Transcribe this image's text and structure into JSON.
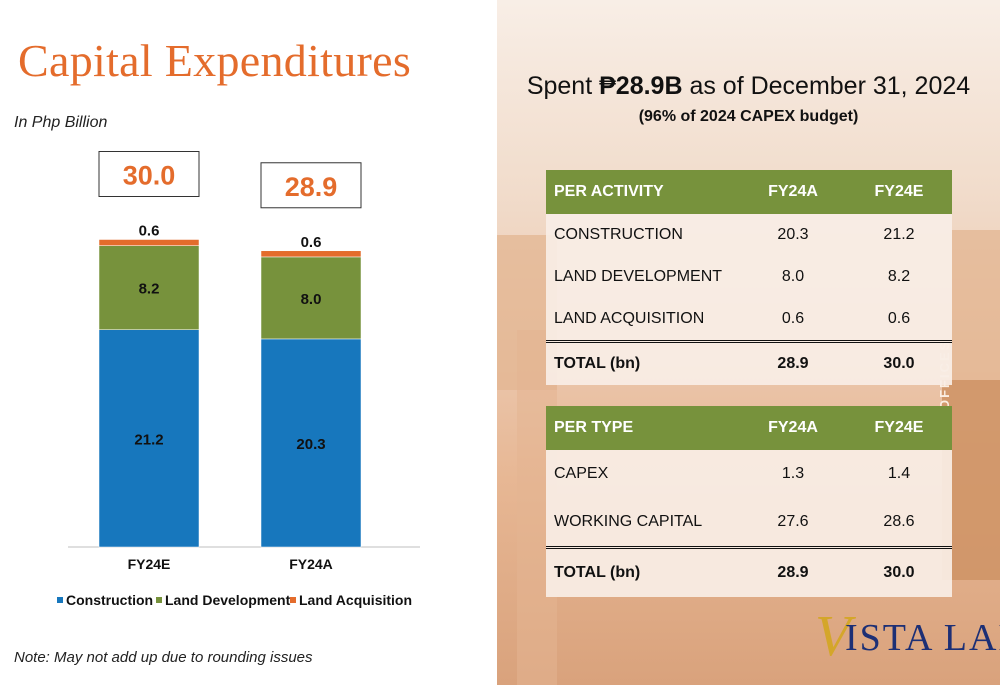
{
  "left": {
    "title": "Capital Expenditures",
    "subtitle": "In Php Billion",
    "note": "Note: May not add up due to rounding issues"
  },
  "chart_data": {
    "type": "bar",
    "stacked": true,
    "categories": [
      "FY24E",
      "FY24A"
    ],
    "series": [
      {
        "name": "Construction",
        "values": [
          21.2,
          20.3
        ],
        "color": "#1777bd"
      },
      {
        "name": "Land Development",
        "values": [
          8.2,
          8.0
        ],
        "color": "#77923c"
      },
      {
        "name": "Land Acquisition",
        "values": [
          0.6,
          0.6
        ],
        "color": "#e46c2c"
      }
    ],
    "totals": [
      30.0,
      28.9
    ],
    "total_labels": [
      "30.0",
      "28.9"
    ],
    "segment_labels": [
      [
        "21.2",
        "8.2",
        "0.6"
      ],
      [
        "20.3",
        "8.0",
        "0.6"
      ]
    ],
    "ylim": [
      0,
      33
    ],
    "legend_position": "bottom",
    "grid": false
  },
  "right": {
    "headline_prefix": "Spent ",
    "headline_bold": "₱28.9B",
    "headline_suffix": " as of December 31, 2024",
    "subheadline": "(96% of 2024 CAPEX budget)",
    "per_activity": {
      "headers": [
        "PER ACTIVITY",
        "FY24A",
        "FY24E"
      ],
      "rows": [
        [
          "CONSTRUCTION",
          "20.3",
          "21.2"
        ],
        [
          "LAND DEVELOPMENT",
          "8.0",
          "8.2"
        ],
        [
          "LAND ACQUISITION",
          "0.6",
          "0.6"
        ]
      ],
      "total": [
        "TOTAL (bn)",
        "28.9",
        "30.0"
      ]
    },
    "per_type": {
      "headers": [
        "PER TYPE",
        "FY24A",
        "FY24E"
      ],
      "rows": [
        [
          "CAPEX",
          "1.3",
          "1.4"
        ],
        [
          "WORKING CAPITAL",
          "27.6",
          "28.6"
        ]
      ],
      "total": [
        "TOTAL (bn)",
        "28.9",
        "30.0"
      ]
    },
    "background_sign": "OFFICES",
    "logo_initial": "V",
    "logo_text": "ISTA LAND",
    "colors": {
      "header_green": "#77923c",
      "title_orange": "#e46c2c",
      "logo_blue": "#1d2f75",
      "logo_gold": "#d4a62a"
    }
  }
}
